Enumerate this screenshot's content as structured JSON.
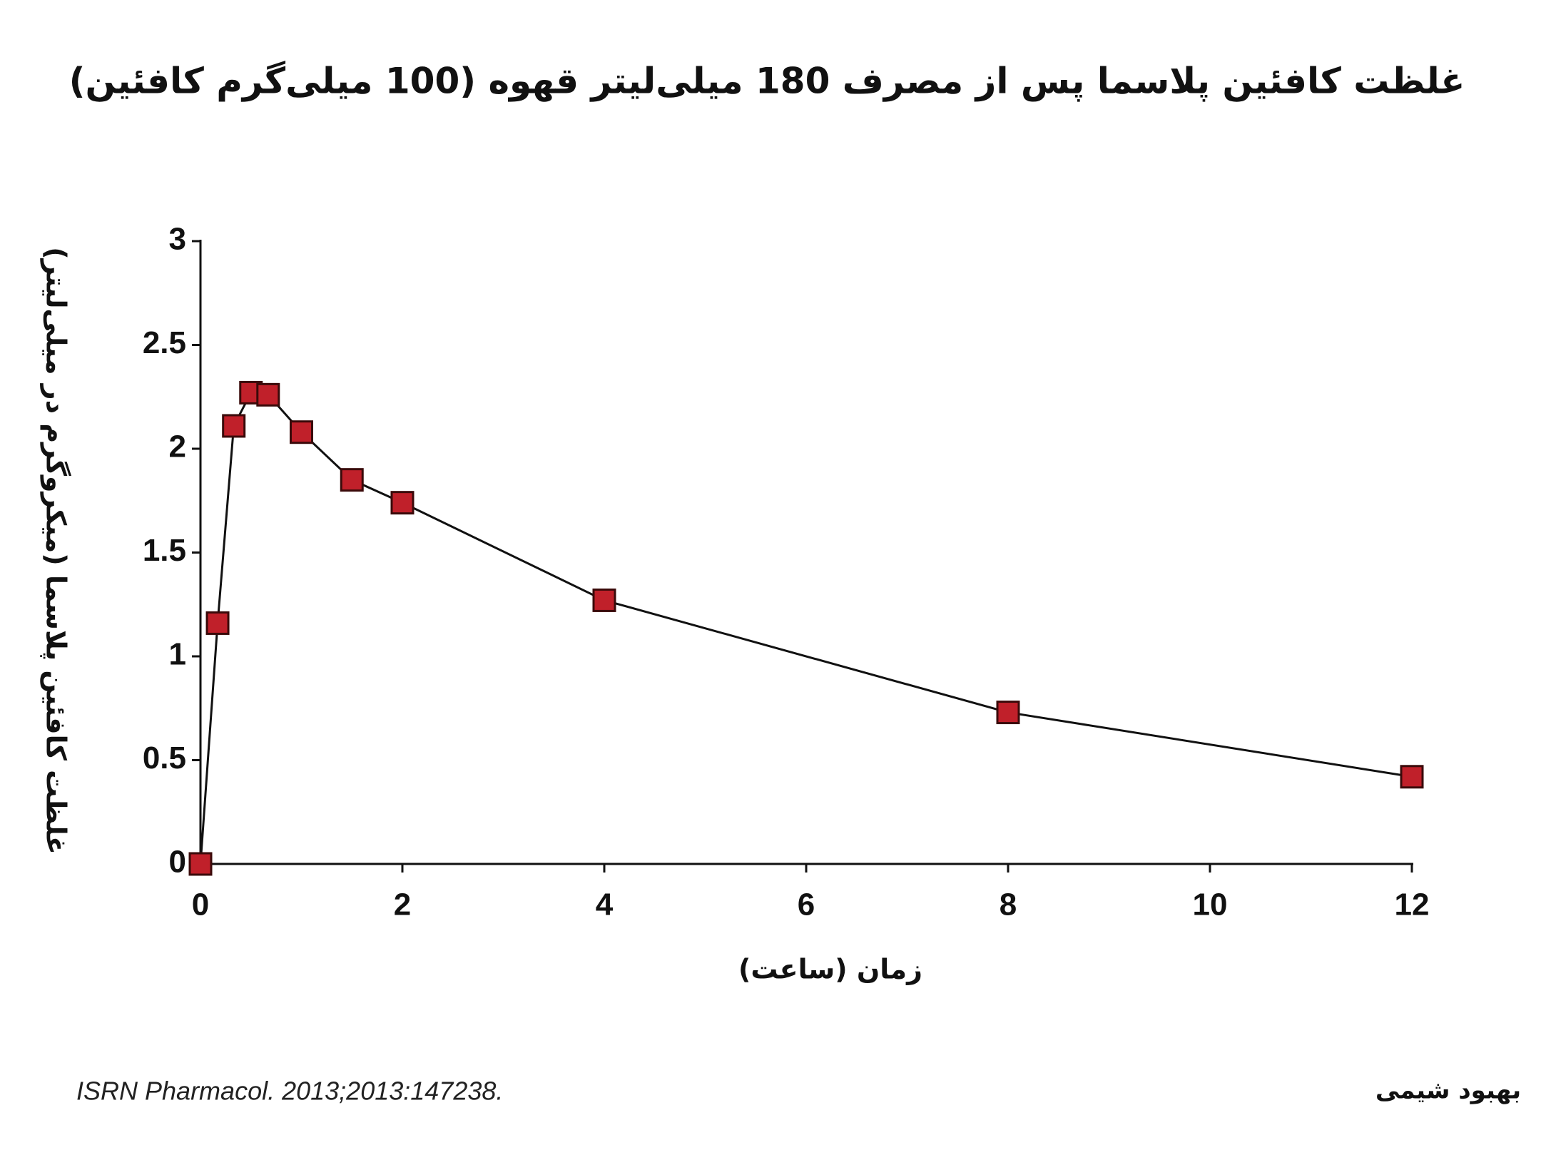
{
  "chart_data": {
    "type": "line",
    "title": "غلظت کافئین پلاسما پس از مصرف 180 میلی‌لیتر قهوه (100 میلی‌گرم کافئین)",
    "x_label": "زمان (ساعت)",
    "y_label": "غلظت کافئین پلاسما (میکروگرم در میلی‌لیتر)",
    "source": "ISRN Pharmacol. 2013;2013:147238.",
    "author": "بهبود شیمی",
    "x": [
      0,
      0.17,
      0.33,
      0.5,
      0.67,
      1,
      1.5,
      2,
      4,
      8,
      12
    ],
    "series": [
      {
        "color": "#c0202a",
        "values": [
          0,
          1.16,
          2.11,
          2.27,
          2.26,
          2.08,
          1.85,
          1.74,
          1.27,
          0.73,
          0.42
        ]
      }
    ],
    "xlim": [
      0,
      12
    ],
    "xticks": [
      0,
      2,
      4,
      6,
      8,
      10,
      12
    ],
    "ylim": [
      0,
      3
    ],
    "yticks": [
      0,
      0.5,
      1,
      1.5,
      2,
      2.5,
      3
    ],
    "grid": false
  }
}
